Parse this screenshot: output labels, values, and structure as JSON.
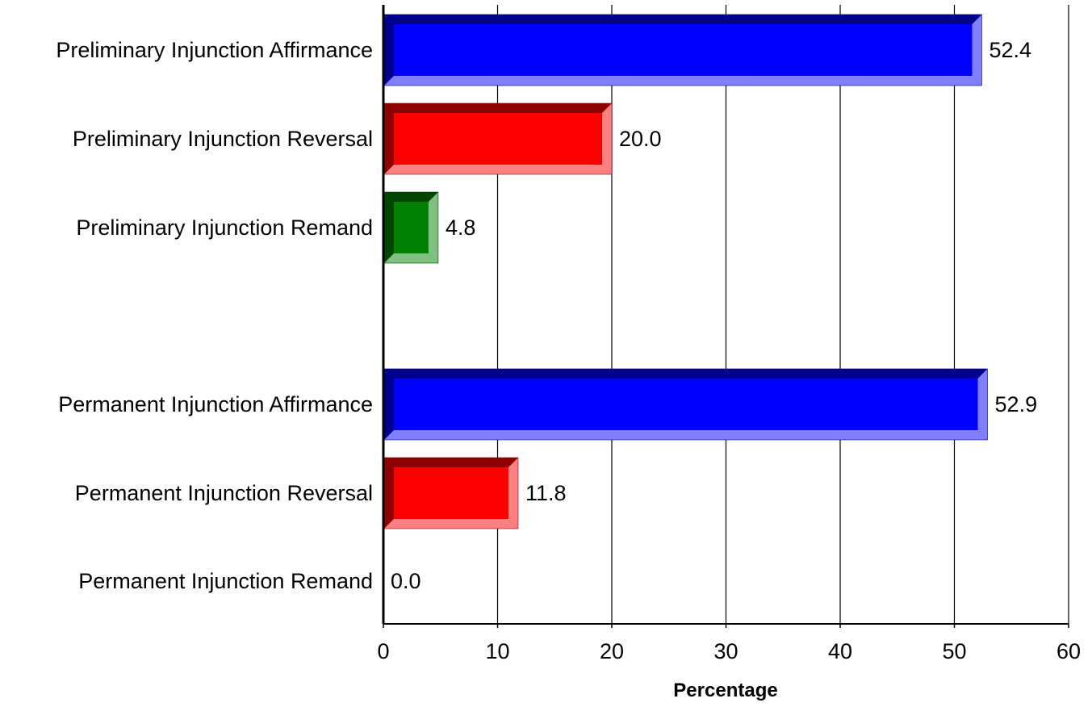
{
  "chart_data": {
    "type": "bar",
    "orientation": "horizontal",
    "categories": [
      "Preliminary Injunction Affirmance",
      "Preliminary Injunction Reversal",
      "Preliminary Injunction Remand",
      "Permanent Injunction Affirmance",
      "Permanent Injunction Reversal",
      "Permanent Injunction Remand"
    ],
    "values": [
      52.4,
      20.0,
      4.8,
      52.9,
      11.8,
      0.0
    ],
    "value_labels": [
      "52.4",
      "20.0",
      "4.8",
      "52.9",
      "11.8",
      "0.0"
    ],
    "groups": [
      {
        "categories": [
          0,
          1,
          2
        ]
      },
      {
        "categories": [
          3,
          4,
          5
        ]
      }
    ],
    "xlabel": "Percentage",
    "ylabel": "",
    "xlim": [
      0,
      60
    ],
    "ticks": [
      "0",
      "10",
      "20",
      "30",
      "40",
      "50",
      "60"
    ],
    "grid": "vertical",
    "colors": {
      "Affirmance": "#0000ff",
      "Reversal": "#ff0000",
      "Remand": "#008000"
    }
  }
}
